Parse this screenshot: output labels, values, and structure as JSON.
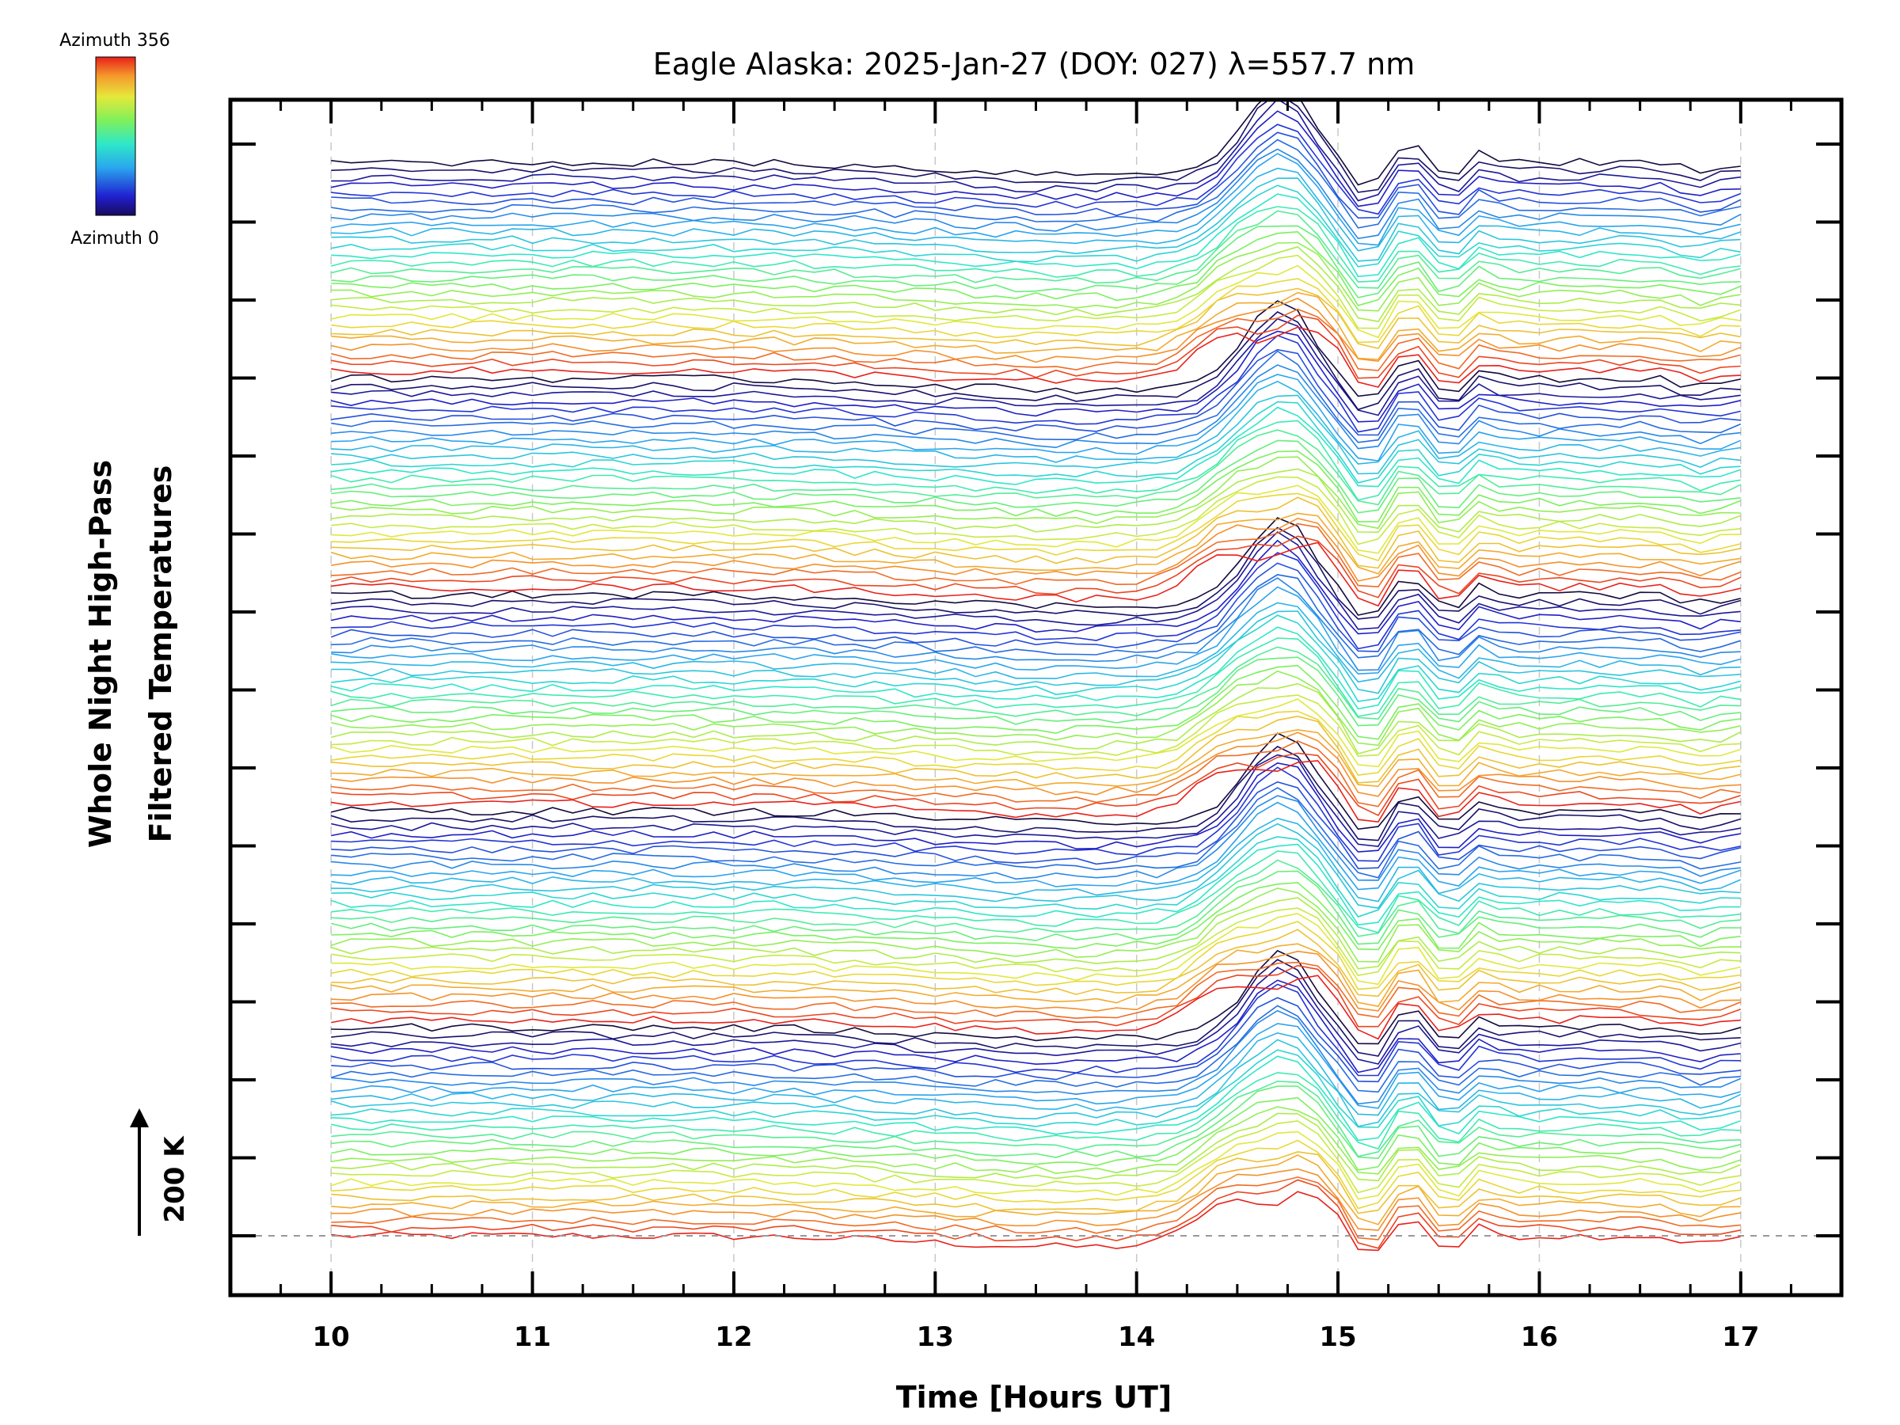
{
  "chart_data": {
    "type": "line",
    "title": "Eagle Alaska: 2025-Jan-27 (DOY: 027) λ=557.7 nm",
    "xlabel": "Time [Hours UT]",
    "ylabel_line1": "Whole Night High-Pass",
    "ylabel_line2": "Filtered Temperatures",
    "xlim": [
      9.5,
      17.5
    ],
    "x_ticks": [
      10,
      11,
      12,
      13,
      14,
      15,
      16,
      17
    ],
    "x_tick_labels": [
      "10",
      "11",
      "12",
      "13",
      "14",
      "15",
      "16",
      "17"
    ],
    "scale_bar_label": "200 K",
    "colorbar": {
      "top_label": "Azimuth 356",
      "bottom_label": "Azimuth 0",
      "colormap": "rainbow (dark navy → blue → cyan → green → yellow → orange → red)"
    },
    "grid": "dashed vertical lines at each hour",
    "offset_traces": 140,
    "baseline_dashed": true
  }
}
